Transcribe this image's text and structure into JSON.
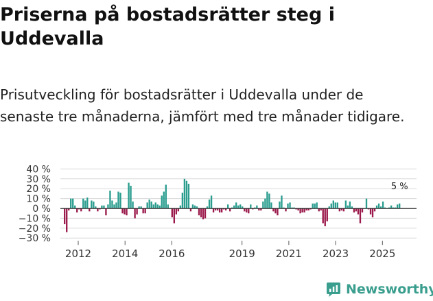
{
  "title": "Priserna på bostadsrätter steg i Uddevalla",
  "subtitle": "Prisutveckling för bostadsrätter i Uddevalla under de senaste tre månaderna, jämfört med tre månader tidigare.",
  "brand": "Newsworthy",
  "colors": {
    "positive": "#2a9d8f",
    "negative": "#9b1b4c",
    "grid": "#d8d8d8",
    "zero": "#333333",
    "brand": "#3a9e8e"
  },
  "chart_data": {
    "type": "bar",
    "title": "Priserna på bostadsrätter steg i Uddevalla",
    "xlabel": "",
    "ylabel": "",
    "ylim": [
      -30,
      40
    ],
    "yticks": [
      40,
      30,
      20,
      10,
      0,
      -10,
      -20,
      -30
    ],
    "ytick_labels": [
      "40 %",
      "30 %",
      "20 %",
      "10 %",
      "0 %",
      "−10 %",
      "−20 %",
      "−30 %"
    ],
    "xticks": [
      2012,
      2014,
      2016,
      2019,
      2021,
      2023,
      2025
    ],
    "xtick_labels": [
      "2012",
      "2014",
      "2016",
      "2019",
      "2021",
      "2023",
      "2025"
    ],
    "x_start": 2012,
    "x_end": 2026.4,
    "annotation": {
      "text": "5 %",
      "value": 5
    },
    "series": [
      {
        "name": "Prisutveckling (%)",
        "values": [
          -16,
          -24,
          -2,
          10,
          10,
          3,
          -4,
          -1,
          -3,
          10,
          8,
          11,
          -3,
          8,
          7,
          2,
          -3,
          -1,
          3,
          3,
          -7,
          4,
          18,
          8,
          4,
          6,
          17,
          16,
          -5,
          -6,
          -7,
          26,
          23,
          7,
          -10,
          -6,
          2,
          2,
          -5,
          -5,
          6,
          9,
          7,
          4,
          6,
          4,
          3,
          13,
          17,
          24,
          4,
          0,
          -9,
          -15,
          -6,
          -3,
          3,
          16,
          30,
          28,
          25,
          -3,
          4,
          3,
          2,
          -7,
          -9,
          -11,
          -10,
          2,
          9,
          13,
          -4,
          -2,
          -2,
          -4,
          -4,
          -1,
          -2,
          4,
          -3,
          1,
          3,
          6,
          3,
          4,
          2,
          -3,
          -4,
          -5,
          4,
          -1,
          1,
          3,
          -2,
          -2,
          7,
          10,
          17,
          15,
          6,
          -3,
          -5,
          -7,
          7,
          13,
          1,
          -3,
          5,
          6,
          1,
          1,
          -1,
          -2,
          -5,
          -4,
          -4,
          -2,
          -2,
          -1,
          5,
          5,
          6,
          -3,
          -2,
          -15,
          -18,
          -13,
          2,
          5,
          8,
          6,
          6,
          -3,
          -2,
          -3,
          8,
          3,
          7,
          2,
          -4,
          -3,
          -6,
          -15,
          -4,
          0,
          10,
          -1,
          -6,
          -9,
          -3,
          3,
          5,
          2,
          7,
          1,
          0,
          1,
          3,
          1,
          1,
          4,
          5
        ]
      }
    ]
  }
}
